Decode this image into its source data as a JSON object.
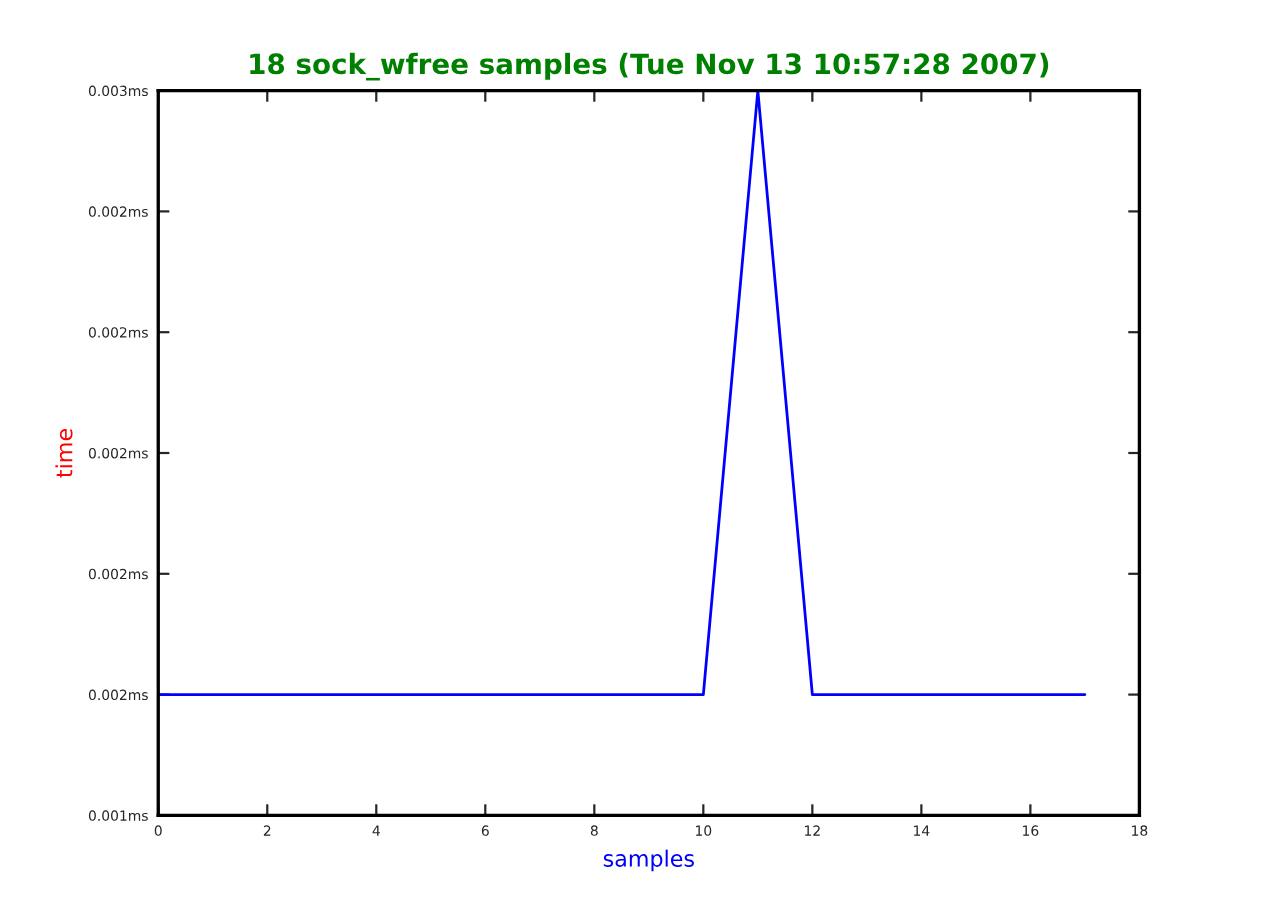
{
  "chart_data": {
    "type": "line",
    "title": "18 sock_wfree samples (Tue Nov 13 10:57:28 2007)",
    "xlabel": "samples",
    "ylabel": "time",
    "x": [
      0,
      1,
      2,
      3,
      4,
      5,
      6,
      7,
      8,
      9,
      10,
      11,
      12,
      13,
      14,
      15,
      16,
      17
    ],
    "series": [
      {
        "color": "#0000ff",
        "values": [
          0.0016,
          0.0016,
          0.0016,
          0.0016,
          0.0016,
          0.0016,
          0.0016,
          0.0016,
          0.0016,
          0.0016,
          0.0016,
          0.0026,
          0.0016,
          0.0016,
          0.0016,
          0.0016,
          0.0016,
          0.0016
        ]
      }
    ],
    "xlim": [
      0,
      18
    ],
    "xticks": [
      0,
      2,
      4,
      6,
      8,
      10,
      12,
      14,
      16,
      18
    ],
    "ylim": [
      0.0014,
      0.0026
    ],
    "yticks": [
      {
        "value": 0.0014,
        "label": "0.001ms"
      },
      {
        "value": 0.0016,
        "label": "0.002ms"
      },
      {
        "value": 0.0018,
        "label": "0.002ms"
      },
      {
        "value": 0.002,
        "label": "0.002ms"
      },
      {
        "value": 0.0022,
        "label": "0.002ms"
      },
      {
        "value": 0.0024,
        "label": "0.002ms"
      },
      {
        "value": 0.0026,
        "label": "0.003ms"
      }
    ],
    "grid": false
  }
}
